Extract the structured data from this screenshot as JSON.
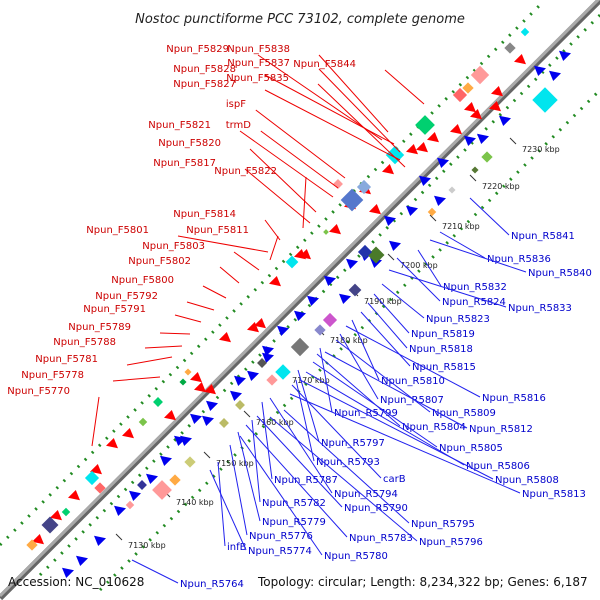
{
  "title": "Nostoc punctiforme PCC 73102, complete genome",
  "footer": {
    "accession": "Accession: NC_010628",
    "topology": "Topology: circular; Length: 8,234,322 bp; Genes: 6,187"
  },
  "ticks": [
    "7130 kbp",
    "7140 kbp",
    "7150 kbp",
    "7160 kbp",
    "7170 kbp",
    "7180 kbp",
    "7190 kbp",
    "7200 kbp",
    "7210 kbp",
    "7220 kbp",
    "7230 kbp"
  ],
  "forward_labels": [
    "Npun_F5829",
    "Npun_F5838",
    "Npun_F5828",
    "Npun_F5837",
    "Npun_F5844",
    "Npun_F5827",
    "Npun_F5835",
    "ispF",
    "trmD",
    "Npun_F5821",
    "Npun_F5820",
    "Npun_F5817",
    "Npun_F5822",
    "Npun_F5814",
    "Npun_F5801",
    "Npun_F5811",
    "Npun_F5803",
    "Npun_F5802",
    "Npun_F5800",
    "Npun_F5792",
    "Npun_F5791",
    "Npun_F5789",
    "Npun_F5788",
    "Npun_F5781",
    "Npun_F5778",
    "Npun_F5770"
  ],
  "reverse_labels": [
    "Npun_R5841",
    "Npun_R5836",
    "Npun_R5840",
    "Npun_R5832",
    "Npun_R5824",
    "Npun_R5833",
    "Npun_R5823",
    "Npun_R5819",
    "Npun_R5818",
    "Npun_R5815",
    "Npun_R5810",
    "Npun_R5816",
    "Npun_R5807",
    "Npun_R5809",
    "Npun_R5799",
    "Npun_R5804",
    "Npun_R5812",
    "Npun_R5797",
    "Npun_R5805",
    "Npun_R5793",
    "Npun_R5806",
    "carB",
    "Npun_R5808",
    "Npun_R5787",
    "Npun_R5794",
    "Npun_R5813",
    "Npun_R5782",
    "Npun_R5790",
    "Npun_R5779",
    "Npun_R5795",
    "Npun_R5776",
    "Npun_R5783",
    "Npun_R5796",
    "infB",
    "Npun_R5774",
    "Npun_R5780",
    "Npun_R5764"
  ],
  "colors": {
    "forward": "#ff0000",
    "reverse": "#0000ee",
    "axis": "#999999",
    "dots": "#228b22"
  }
}
